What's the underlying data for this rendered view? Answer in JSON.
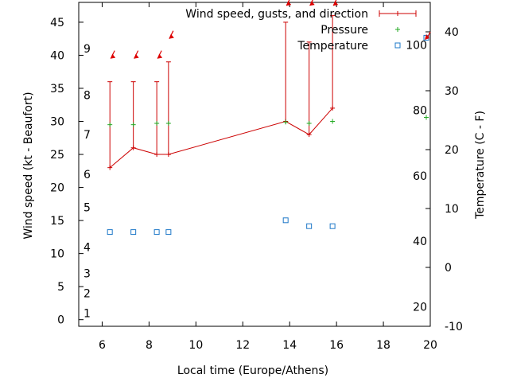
{
  "chart_data": {
    "type": "line",
    "xlabel": "Local time (Europe/Athens)",
    "ylabel_left": "Wind speed (kt - Beaufort)",
    "ylabel_right": "Temperature (C - F)",
    "xlim": [
      5,
      20
    ],
    "ylim_left": [
      -1,
      48
    ],
    "ylim_right": [
      -10,
      45
    ],
    "x_ticks": [
      "6",
      "8",
      "10",
      "12",
      "14",
      "16",
      "18",
      "20"
    ],
    "x_tick_values": [
      6,
      8,
      10,
      12,
      14,
      16,
      18,
      20
    ],
    "y_left_ticks": [
      "0",
      "5",
      "10",
      "15",
      "20",
      "25",
      "30",
      "35",
      "40",
      "45"
    ],
    "y_left_tick_values": [
      0,
      5,
      10,
      15,
      20,
      25,
      30,
      35,
      40,
      45
    ],
    "y_right_ticks": [
      "-10",
      "0",
      "10",
      "20",
      "30",
      "40"
    ],
    "y_right_tick_values": [
      -10,
      0,
      10,
      20,
      30,
      40
    ],
    "beaufort_labels": [
      "1",
      "2",
      "3",
      "4",
      "5",
      "6",
      "7",
      "8",
      "9"
    ],
    "beaufort_values": [
      1,
      4,
      7,
      11,
      17,
      22,
      28,
      34,
      41
    ],
    "fahrenheit_labels": [
      "20",
      "40",
      "60",
      "80",
      "100"
    ],
    "fahrenheit_values": [
      20,
      40,
      60,
      80,
      100
    ],
    "legend": {
      "position": "top-right",
      "entries": [
        "Wind speed, gusts, and direction",
        "Pressure",
        "Temperature"
      ]
    },
    "colors": {
      "wind": "#cc0000",
      "pressure": "#22aa22",
      "temperature": "#1e78c8",
      "arrow": "#dd0000"
    },
    "series": [
      {
        "name": "Wind speed, gusts, and direction",
        "x": [
          6.33,
          7.33,
          8.33,
          8.83,
          13.83,
          14.83,
          15.83
        ],
        "speed": [
          23,
          26,
          25,
          25,
          30,
          28,
          32
        ],
        "gust": [
          36,
          36,
          36,
          39,
          45,
          42,
          46
        ],
        "direction_deg": [
          22,
          22,
          22,
          22,
          22,
          22,
          22
        ]
      },
      {
        "name": "Pressure",
        "x": [
          6.33,
          7.33,
          8.33,
          8.83,
          13.83,
          14.83,
          15.83,
          19.83
        ],
        "y": [
          29.5,
          29.5,
          29.7,
          29.7,
          29.9,
          29.7,
          30.0,
          30.6
        ]
      },
      {
        "name": "Temperature",
        "x": [
          6.33,
          7.33,
          8.33,
          8.83,
          13.83,
          14.83,
          15.83,
          19.83
        ],
        "y_celsius": [
          6,
          6,
          6,
          6,
          8,
          7,
          7,
          39
        ]
      }
    ]
  }
}
